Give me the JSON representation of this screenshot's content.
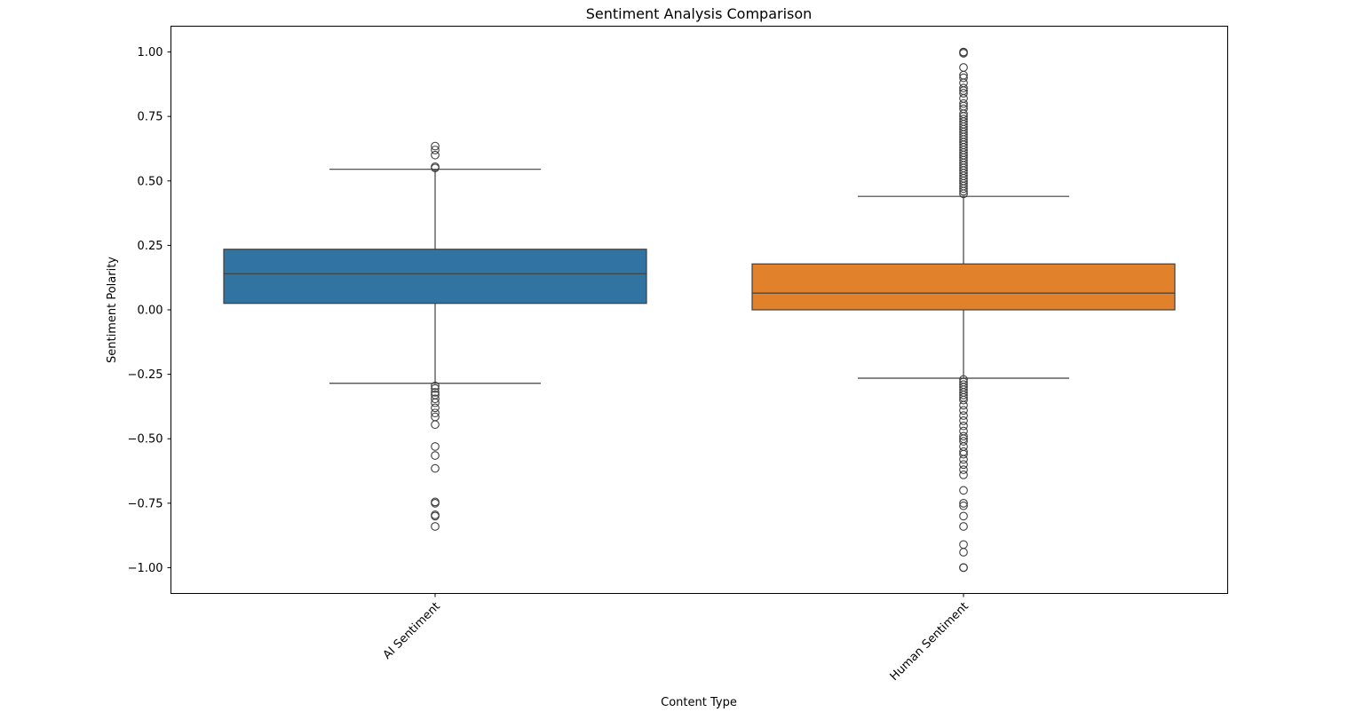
{
  "chart_data": {
    "type": "box",
    "title": "Sentiment Analysis Comparison",
    "xlabel": "Content Type",
    "ylabel": "Sentiment Polarity",
    "ylim": [
      -1.1,
      1.1
    ],
    "yticks": [
      "1.00",
      "0.75",
      "0.50",
      "0.25",
      "0.00",
      "−0.25",
      "−0.50",
      "−0.75",
      "−1.00"
    ],
    "ytick_values": [
      1.0,
      0.75,
      0.5,
      0.25,
      0.0,
      -0.25,
      -0.5,
      -0.75,
      -1.0
    ],
    "grid": false,
    "legend": false,
    "categories": [
      "AI Sentiment",
      "Human Sentiment"
    ],
    "series": [
      {
        "category": "AI Sentiment",
        "color": "#3274a1",
        "whisker_low": -0.285,
        "q1": 0.025,
        "median": 0.14,
        "q3": 0.235,
        "whisker_high": 0.545,
        "outliers": [
          0.635,
          0.62,
          0.6,
          0.555,
          0.55,
          -0.295,
          -0.305,
          -0.32,
          -0.33,
          -0.345,
          -0.36,
          -0.38,
          -0.4,
          -0.415,
          -0.445,
          -0.53,
          -0.565,
          -0.615,
          -0.745,
          -0.75,
          -0.795,
          -0.8,
          -0.84
        ]
      },
      {
        "category": "Human Sentiment",
        "color": "#e1812c",
        "whisker_low": -0.265,
        "q1": 0.0,
        "median": 0.065,
        "q3": 0.178,
        "whisker_high": 0.44,
        "outliers": [
          1.0,
          0.999,
          0.995,
          0.94,
          0.91,
          0.9,
          0.88,
          0.86,
          0.85,
          0.84,
          0.82,
          0.8,
          0.79,
          0.78,
          0.76,
          0.75,
          0.74,
          0.73,
          0.72,
          0.71,
          0.7,
          0.69,
          0.68,
          0.67,
          0.66,
          0.65,
          0.64,
          0.63,
          0.62,
          0.61,
          0.6,
          0.59,
          0.58,
          0.57,
          0.56,
          0.55,
          0.54,
          0.53,
          0.52,
          0.51,
          0.5,
          0.49,
          0.48,
          0.47,
          0.46,
          0.45,
          -0.27,
          -0.28,
          -0.29,
          -0.3,
          -0.31,
          -0.32,
          -0.33,
          -0.34,
          -0.35,
          -0.37,
          -0.39,
          -0.41,
          -0.43,
          -0.45,
          -0.47,
          -0.49,
          -0.5,
          -0.51,
          -0.53,
          -0.55,
          -0.56,
          -0.58,
          -0.6,
          -0.62,
          -0.64,
          -0.7,
          -0.75,
          -0.76,
          -0.8,
          -0.84,
          -0.91,
          -0.94,
          -1.0,
          -0.999
        ]
      }
    ]
  }
}
